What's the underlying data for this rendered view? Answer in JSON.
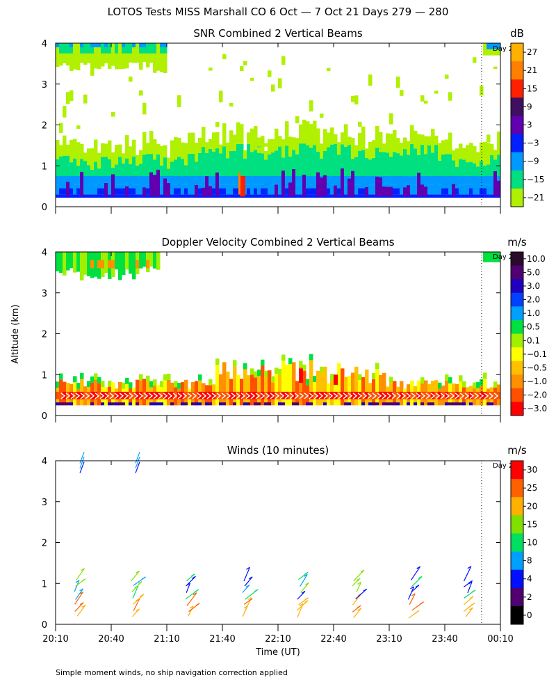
{
  "figure": {
    "title": "LOTOS Tests MISS Marshall CO   6 Oct —  7 Oct 21 Days 279 — 280",
    "ylabel": "Altitude (km)",
    "xlabel": "Time (UT)",
    "footnote": "Simple moment winds, no ship navigation correction applied",
    "day_marker": "Day 2"
  },
  "chart_data": [
    {
      "id": "snr",
      "type": "heatmap",
      "title": "SNR Combined 2 Vertical Beams",
      "xlabel": "Time (UT)",
      "ylabel": "Altitude (km)",
      "ylim": [
        0,
        4
      ],
      "yticks": [
        "0",
        "1",
        "2",
        "3",
        "4"
      ],
      "grid": false,
      "colorbar": {
        "unit": "dB",
        "labels": [
          "27",
          "21",
          "15",
          "9",
          "3",
          "−3",
          "−9",
          "−15",
          "−21"
        ],
        "colors": [
          "#ffb000",
          "#ff7f00",
          "#ff2000",
          "#3f1060",
          "#6000b0",
          "#0020ff",
          "#0099ff",
          "#00e080",
          "#b0f000"
        ]
      }
    },
    {
      "id": "doppler",
      "type": "heatmap",
      "title": "Doppler Velocity Combined 2 Vertical Beams",
      "xlabel": "Time (UT)",
      "ylabel": "Altitude (km)",
      "ylim": [
        0,
        4
      ],
      "yticks": [
        "0",
        "1",
        "2",
        "3",
        "4"
      ],
      "grid": false,
      "colorbar": {
        "unit": "m/s",
        "labels": [
          "10.0",
          "5.0",
          "3.0",
          "2.0",
          "1.0",
          "0.5",
          "0.1",
          "−0.1",
          "−0.5",
          "−1.0",
          "−2.0",
          "−3.0"
        ],
        "colors": [
          "#2a0a2a",
          "#500070",
          "#2000c0",
          "#0040ff",
          "#00a0ff",
          "#00e040",
          "#a0f000",
          "#ffff00",
          "#ffc000",
          "#ff9000",
          "#ff5000",
          "#ff0000"
        ]
      }
    },
    {
      "id": "winds",
      "type": "scatter",
      "title": "Winds (10 minutes)",
      "xlabel": "Time (UT)",
      "ylabel": "Altitude (km)",
      "ylim": [
        0,
        4
      ],
      "yticks": [
        "0",
        "1",
        "2",
        "3",
        "4"
      ],
      "grid": false,
      "colorbar": {
        "unit": "m/s",
        "labels": [
          "30",
          "25",
          "20",
          "15",
          "10",
          "8",
          "4",
          "2",
          "0"
        ],
        "colors": [
          "#ff0000",
          "#ff6000",
          "#ffb000",
          "#80e000",
          "#00e060",
          "#00a0ff",
          "#0010ff",
          "#500070",
          "#000000"
        ]
      }
    }
  ],
  "xaxis": {
    "ticks": [
      "20:10",
      "20:40",
      "21:10",
      "21:40",
      "22:10",
      "22:40",
      "23:10",
      "23:40",
      "00:10"
    ],
    "start_minutes": 1210,
    "end_minutes": 1450
  }
}
